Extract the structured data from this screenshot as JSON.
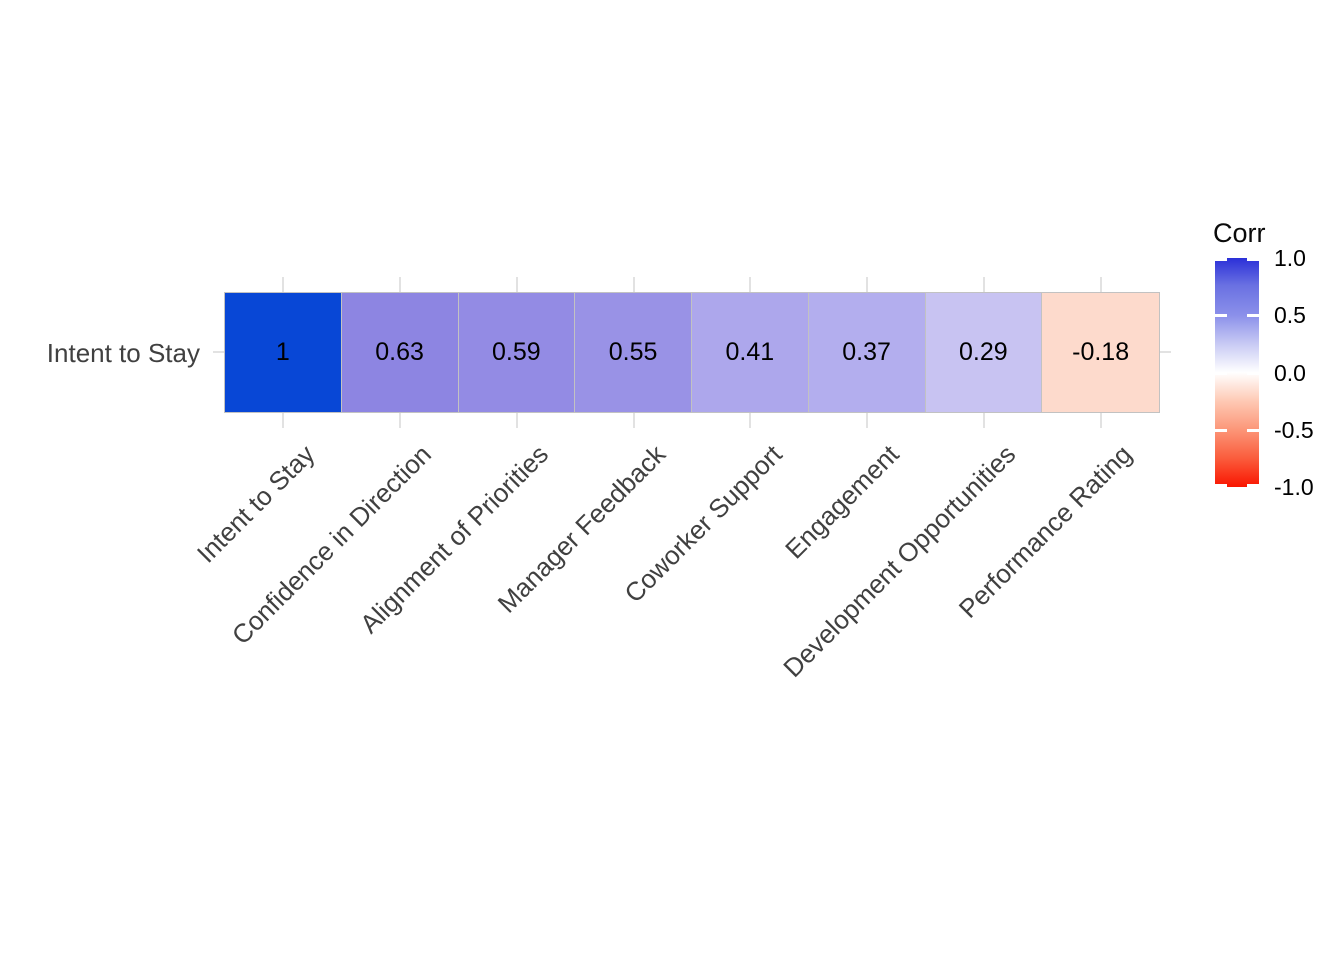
{
  "chart_data": {
    "type": "heatmap",
    "title": "",
    "row_labels": [
      "Intent to Stay"
    ],
    "categories": [
      "Intent to Stay",
      "Confidence in Direction",
      "Alignment of Priorities",
      "Manager Feedback",
      "Coworker Support",
      "Engagement",
      "Development Opportunities",
      "Performance Rating"
    ],
    "values": [
      [
        1,
        0.63,
        0.59,
        0.55,
        0.41,
        0.37,
        0.29,
        -0.18
      ]
    ],
    "display_values": [
      [
        "1",
        "0.63",
        "0.59",
        "0.55",
        "0.41",
        "0.37",
        "0.29",
        "-0.18"
      ]
    ],
    "cell_colors": [
      [
        "#0847d6",
        "#8d85e2",
        "#938be4",
        "#9992e6",
        "#ada7ec",
        "#b3aeee",
        "#c8c3f2",
        "#fddacc"
      ]
    ],
    "grid": true,
    "grid_color": "#e2e2e2",
    "cell_border_color": "#c2c2c2",
    "axis_text_color": "#404040",
    "value_text_color": "#000000",
    "legend_position": "right",
    "legend": {
      "title": "Corr",
      "range": [
        -1,
        1
      ],
      "tick_labels": [
        "1.0",
        "0.5",
        "0.0",
        "-0.5",
        "-1.0"
      ],
      "tick_values": [
        1.0,
        0.5,
        0.0,
        -0.5,
        -1.0
      ],
      "gradient_stops": [
        {
          "pos": 0.0,
          "color": "#2b30d8"
        },
        {
          "pos": 0.12,
          "color": "#6a71e2"
        },
        {
          "pos": 0.25,
          "color": "#8b90ea"
        },
        {
          "pos": 0.375,
          "color": "#c8caf4"
        },
        {
          "pos": 0.5,
          "color": "#ffffff"
        },
        {
          "pos": 0.625,
          "color": "#fec9b4"
        },
        {
          "pos": 0.75,
          "color": "#fc9678"
        },
        {
          "pos": 0.875,
          "color": "#fa5c3c"
        },
        {
          "pos": 1.0,
          "color": "#f91500"
        }
      ]
    }
  }
}
